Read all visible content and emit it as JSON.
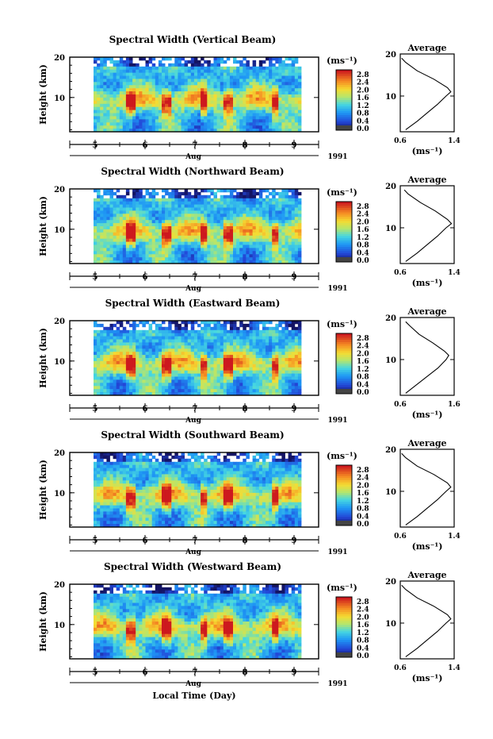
{
  "figure": {
    "xlabel": "Local Time (Day)",
    "colorbar_unit": "(ms⁻¹)",
    "average_title": "Average",
    "average_xlabel": "(ms⁻¹)",
    "month": "Aug",
    "year": "1991"
  },
  "chart_data": [
    {
      "type": "heatmap",
      "title": "Spectral Width (Vertical Beam)",
      "ylabel": "Height (km)",
      "x_ticks": [
        "5",
        "6",
        "7",
        "8",
        "9"
      ],
      "y_ticks": [
        "20",
        "10"
      ],
      "ylim": [
        1.5,
        20
      ],
      "colorbar_ticks": [
        "2.8",
        "2.4",
        "2.0",
        "1.6",
        "1.2",
        "0.8",
        "0.4",
        "0.0"
      ],
      "average": {
        "xlim": [
          0.6,
          1.4
        ],
        "x_ticks": [
          "0.6",
          "1.4"
        ],
        "profile_heights": [
          2,
          4,
          6,
          8,
          10,
          11,
          12,
          14,
          16,
          18,
          19
        ],
        "profile_values": [
          0.68,
          0.85,
          1.0,
          1.15,
          1.28,
          1.35,
          1.3,
          1.1,
          0.85,
          0.68,
          0.62
        ]
      }
    },
    {
      "type": "heatmap",
      "title": "Spectral Width (Northward Beam)",
      "ylabel": "Height (km)",
      "x_ticks": [
        "5",
        "6",
        "7",
        "8",
        "9"
      ],
      "y_ticks": [
        "20",
        "10"
      ],
      "ylim": [
        1.5,
        20
      ],
      "colorbar_ticks": [
        "2.8",
        "2.4",
        "2.0",
        "1.6",
        "1.2",
        "0.8",
        "0.4",
        "0.0"
      ],
      "average": {
        "xlim": [
          0.6,
          1.4
        ],
        "x_ticks": [
          "0.6",
          "1.4"
        ],
        "profile_heights": [
          2,
          4,
          6,
          8,
          10,
          11,
          12,
          14,
          16,
          18,
          19
        ],
        "profile_values": [
          0.68,
          0.85,
          1.0,
          1.15,
          1.28,
          1.36,
          1.3,
          1.12,
          0.9,
          0.72,
          0.66
        ]
      }
    },
    {
      "type": "heatmap",
      "title": "Spectral Width (Eastward Beam)",
      "ylabel": "Height (km)",
      "x_ticks": [
        "5",
        "6",
        "7",
        "8",
        "9"
      ],
      "y_ticks": [
        "20",
        "10"
      ],
      "ylim": [
        1.5,
        20
      ],
      "colorbar_ticks": [
        "2.8",
        "2.4",
        "2.0",
        "1.6",
        "1.2",
        "0.8",
        "0.4",
        "0.0"
      ],
      "average": {
        "xlim": [
          0.6,
          1.6
        ],
        "x_ticks": [
          "0.6",
          "1.6"
        ],
        "profile_heights": [
          2,
          4,
          6,
          8,
          10,
          11,
          12,
          14,
          16,
          18,
          19
        ],
        "profile_values": [
          0.7,
          0.9,
          1.1,
          1.3,
          1.45,
          1.5,
          1.42,
          1.2,
          0.95,
          0.78,
          0.7
        ]
      }
    },
    {
      "type": "heatmap",
      "title": "Spectral Width (Southward Beam)",
      "ylabel": "Height (km)",
      "x_ticks": [
        "5",
        "6",
        "7",
        "8",
        "9"
      ],
      "y_ticks": [
        "20",
        "10"
      ],
      "ylim": [
        1.5,
        20
      ],
      "colorbar_ticks": [
        "2.8",
        "2.4",
        "2.0",
        "1.6",
        "1.2",
        "0.8",
        "0.4",
        "0.0"
      ],
      "average": {
        "xlim": [
          0.6,
          1.4
        ],
        "x_ticks": [
          "0.6",
          "1.4"
        ],
        "profile_heights": [
          2,
          4,
          6,
          8,
          10,
          11,
          12,
          14,
          16,
          18,
          19
        ],
        "profile_values": [
          0.68,
          0.85,
          1.0,
          1.15,
          1.28,
          1.35,
          1.3,
          1.1,
          0.85,
          0.68,
          0.62
        ]
      }
    },
    {
      "type": "heatmap",
      "title": "Spectral Width (Westward Beam)",
      "ylabel": "Height (km)",
      "x_ticks": [
        "5",
        "6",
        "7",
        "8",
        "9"
      ],
      "y_ticks": [
        "20",
        "10"
      ],
      "ylim": [
        1.5,
        20
      ],
      "colorbar_ticks": [
        "2.8",
        "2.4",
        "2.0",
        "1.6",
        "1.2",
        "0.8",
        "0.4",
        "0.0"
      ],
      "average": {
        "xlim": [
          0.6,
          1.4
        ],
        "x_ticks": [
          "0.6",
          "1.4"
        ],
        "profile_heights": [
          2,
          4,
          6,
          8,
          10,
          11,
          12,
          14,
          16,
          18,
          19
        ],
        "profile_values": [
          0.68,
          0.85,
          1.0,
          1.15,
          1.28,
          1.35,
          1.3,
          1.1,
          0.85,
          0.68,
          0.62
        ]
      }
    }
  ]
}
